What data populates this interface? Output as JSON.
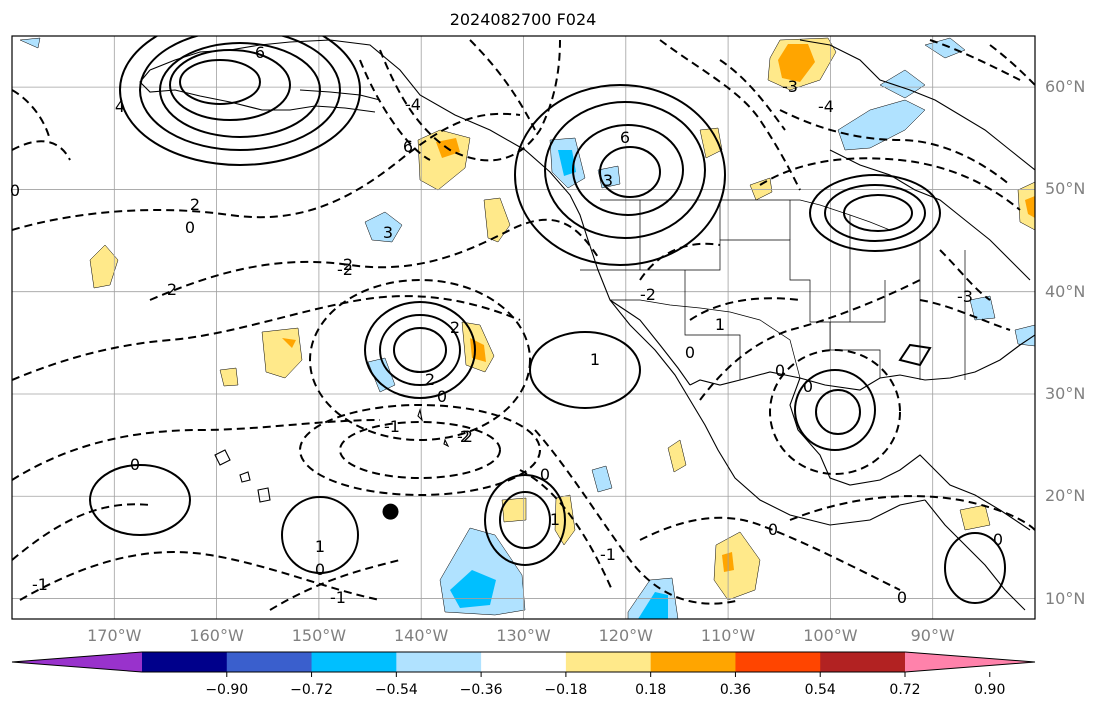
{
  "title": "2024082700 F024",
  "map": {
    "lon_range_deg_east": [
      -180,
      -80
    ],
    "lat_range_deg_north": [
      8,
      65
    ],
    "graticule_step_deg": 10,
    "frame_color": "#000000",
    "grid_color": "#a0a0a0"
  },
  "lat_labels": [
    "60°N",
    "50°N",
    "40°N",
    "30°N",
    "20°N",
    "10°N"
  ],
  "lon_labels": [
    "170°W",
    "160°W",
    "150°W",
    "140°W",
    "130°W",
    "120°W",
    "110°W",
    "100°W",
    "90°W"
  ],
  "colorbar": {
    "extend": "both",
    "colors": [
      "#9932cc",
      "#00008b",
      "#3a5fcd",
      "#00bfff",
      "#b0e2ff",
      "#ffffff",
      "#ffe98a",
      "#ffa500",
      "#ff4500",
      "#b22222",
      "#ff82ab"
    ],
    "tick_labels": [
      "−0.90",
      "−0.72",
      "−0.54",
      "−0.36",
      "−0.18",
      "0.18",
      "0.36",
      "0.54",
      "0.72",
      "0.90"
    ]
  },
  "contour_labels": [
    "6",
    "4",
    "3",
    "2",
    "1",
    "0",
    "-1",
    "-2",
    "-3",
    "-4"
  ],
  "marker": {
    "name": "black-dot",
    "lon": -143,
    "lat": 18.5,
    "color": "#000000"
  }
}
